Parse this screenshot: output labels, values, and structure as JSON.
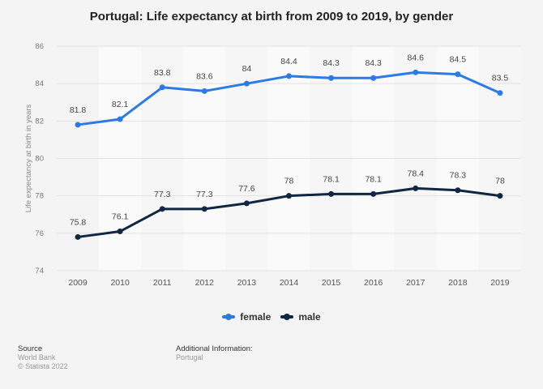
{
  "chart_data": {
    "type": "line",
    "title": "Portugal: Life expectancy at birth from 2009 to 2019, by gender",
    "ylabel": "Life expectancy at birth in years",
    "xlabel": "",
    "categories": [
      "2009",
      "2010",
      "2011",
      "2012",
      "2013",
      "2014",
      "2015",
      "2016",
      "2017",
      "2018",
      "2019"
    ],
    "ylim": [
      74,
      86
    ],
    "yticks": [
      74,
      76,
      78,
      80,
      82,
      84,
      86
    ],
    "grid": true,
    "legend_position": "bottom",
    "series": [
      {
        "name": "female",
        "color": "#2c7be5",
        "values": [
          81.8,
          82.1,
          83.8,
          83.6,
          84,
          84.4,
          84.3,
          84.3,
          84.6,
          84.5,
          83.5
        ]
      },
      {
        "name": "male",
        "color": "#0f2742",
        "values": [
          75.8,
          76.1,
          77.3,
          77.3,
          77.6,
          78,
          78.1,
          78.1,
          78.4,
          78.3,
          78
        ]
      }
    ]
  },
  "footer": {
    "source_label": "Source",
    "source": "World Bank",
    "copyright": "© Statista 2022",
    "info_label": "Additional Information:",
    "info": "Portugal"
  }
}
